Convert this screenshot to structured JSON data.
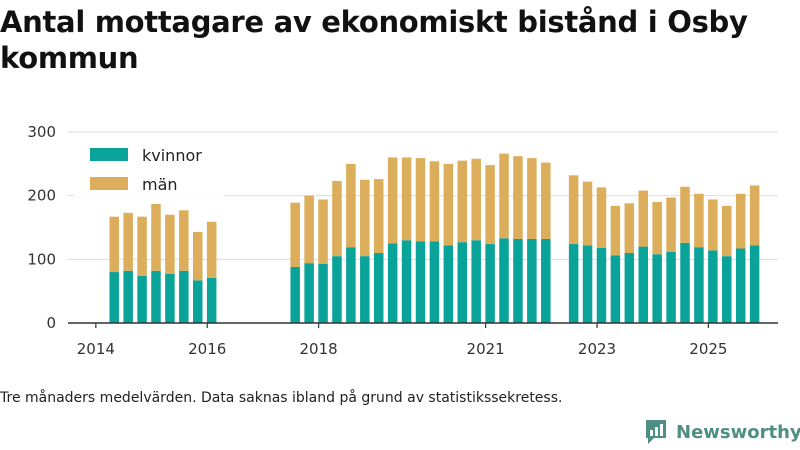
{
  "title": "Antal mottagare av ekonomiskt bistånd i Osby kommun",
  "footnote": "Tre månaders medelvärden. Data saknas ibland på grund av statistikssekretess.",
  "brand": "Newsworthy",
  "colors": {
    "kvinnor": "#0aa39a",
    "man": "#dcad5a",
    "grid": "#dddddd",
    "axis": "#333333",
    "brand": "#4d8f82"
  },
  "chart_data": {
    "type": "bar",
    "stacked": true,
    "x_tick_labels": [
      "2014",
      "2016",
      "2018",
      "2021",
      "2023",
      "2025"
    ],
    "x_tick_years": [
      2014,
      2016,
      2018,
      2021,
      2023,
      2025
    ],
    "x_range": [
      2013.5,
      2026.25
    ],
    "y_ticks": [
      0,
      100,
      200,
      300
    ],
    "ylim": [
      0,
      300
    ],
    "grid": true,
    "legend_position": "top-left",
    "series": [
      {
        "name": "kvinnor",
        "color": "#0aa39a",
        "values": [
          80,
          82,
          74,
          82,
          77,
          82,
          67,
          71,
          88,
          94,
          93,
          105,
          119,
          105,
          110,
          125,
          130,
          128,
          128,
          122,
          127,
          130,
          124,
          133,
          132,
          132,
          132,
          124,
          122,
          118,
          106,
          110,
          120,
          108,
          112,
          126,
          119,
          114,
          105,
          117,
          122
        ]
      },
      {
        "name": "män",
        "color": "#dcad5a",
        "values": [
          87,
          91,
          93,
          105,
          93,
          95,
          76,
          88,
          101,
          106,
          101,
          118,
          131,
          120,
          116,
          135,
          130,
          131,
          126,
          128,
          128,
          128,
          124,
          133,
          130,
          127,
          120,
          108,
          100,
          95,
          78,
          78,
          88,
          82,
          85,
          88,
          84,
          80,
          79,
          86,
          94
        ]
      }
    ],
    "x": [
      2014.33,
      2014.58,
      2014.83,
      2015.08,
      2015.33,
      2015.58,
      2015.83,
      2016.08,
      2017.58,
      2017.83,
      2018.08,
      2018.33,
      2018.58,
      2018.83,
      2019.08,
      2019.33,
      2019.58,
      2019.83,
      2020.08,
      2020.33,
      2020.58,
      2020.83,
      2021.08,
      2021.33,
      2021.58,
      2021.83,
      2022.08,
      2022.58,
      2022.83,
      2023.08,
      2023.33,
      2023.58,
      2023.83,
      2024.08,
      2024.33,
      2024.58,
      2024.83,
      2025.08,
      2025.33,
      2025.58,
      2025.83
    ]
  }
}
